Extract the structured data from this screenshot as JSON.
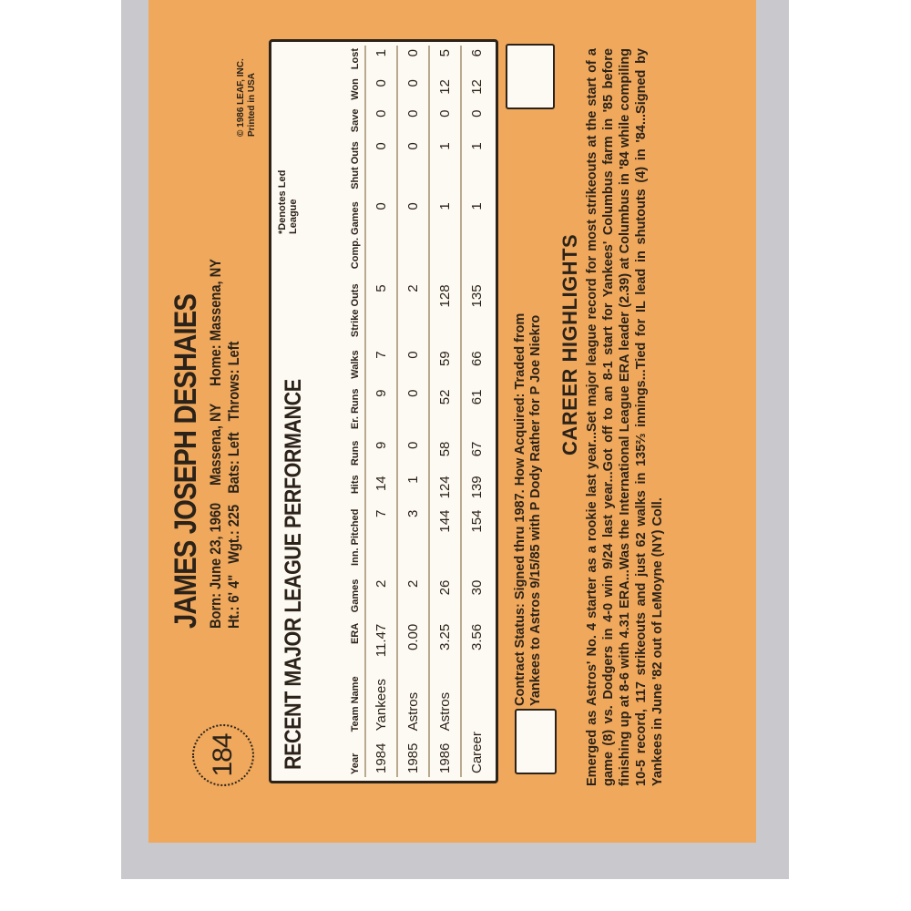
{
  "card": {
    "number": "184",
    "name": "JAMES JOSEPH DESHAIES",
    "bio_line_1": [
      "Born: June 23, 1960",
      "Massena, NY",
      "Home: Massena, NY"
    ],
    "bio_line_2": [
      "Ht.: 6' 4\"",
      "Wgt.: 225",
      "Bats: Left",
      "Throws: Left"
    ],
    "copyright": "© 1986 LEAF, INC. Printed in USA",
    "table": {
      "title": "RECENT MAJOR LEAGUE PERFORMANCE",
      "note": "*Denotes Led League",
      "headers": [
        "Year",
        "Team Name",
        "ERA",
        "Games",
        "Inn. Pitched",
        "Hits",
        "Runs",
        "Er. Runs",
        "Walks",
        "Strike Outs",
        "Comp. Games",
        "Shut Outs",
        "Save",
        "Won",
        "Lost"
      ],
      "rows": [
        [
          "1984",
          "Yankees",
          "11.47",
          "2",
          "7",
          "14",
          "9",
          "9",
          "7",
          "5",
          "0",
          "0",
          "0",
          "0",
          "1"
        ],
        [
          "1985",
          "Astros",
          "0.00",
          "2",
          "3",
          "1",
          "0",
          "0",
          "0",
          "2",
          "0",
          "0",
          "0",
          "0",
          "0"
        ],
        [
          "1986",
          "Astros",
          "3.25",
          "26",
          "144",
          "124",
          "58",
          "52",
          "59",
          "128",
          "1",
          "1",
          "0",
          "12",
          "5"
        ],
        [
          "Career",
          "3.56",
          "30",
          "154",
          "139",
          "67",
          "61",
          "66",
          "135",
          "1",
          "1",
          "0",
          "12",
          "6"
        ]
      ]
    },
    "contract": "Contract Status: Signed thru 1987. How Acquired: Traded from Yankees to Astros 9/15/85 with P Dody Rather for P Joe Niekro",
    "highlights_title": "CAREER HIGHLIGHTS",
    "highlights": "Emerged as Astros' No. 4 starter as a rookie last year...Set major league record for most strikeouts at the start of a game (8) vs. Dodgers in 4-0 win 9/24 last year...Got off to an 8-1 start for Yankees' Columbus farm in '85 before finishing up at 8-6 with 4.31 ERA...Was the International League ERA leader (2.39) at Columbus in '84 while compiling 10-5 record, 117 strikeouts and just 62 walks in 135⅔ innings...Tied for IL lead in shutouts (4) in '84...Signed by Yankees in June '82 out of LeMoyne (NY) Coll."
  }
}
